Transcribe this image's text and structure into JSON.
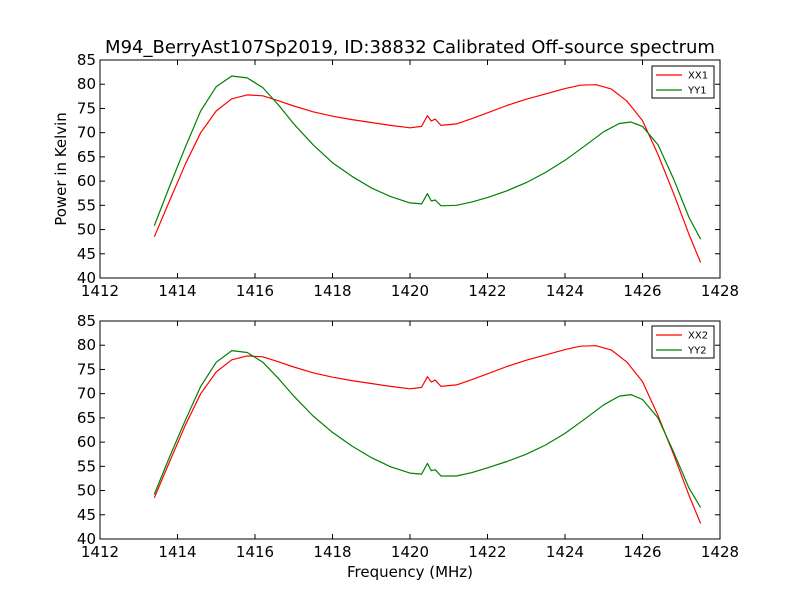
{
  "figure": {
    "title": "M94_BerryAst107Sp2019, ID:38832 Calibrated Off-source spectrum"
  },
  "chart_data": [
    {
      "type": "line",
      "xlabel": "",
      "ylabel": "Power in Kelvin",
      "xlim": [
        1412,
        1428
      ],
      "ylim": [
        40,
        85
      ],
      "xticks": [
        "1412",
        "1414",
        "1416",
        "1418",
        "1420",
        "1422",
        "1424",
        "1426",
        "1428"
      ],
      "yticks": [
        "40",
        "45",
        "50",
        "55",
        "60",
        "65",
        "70",
        "75",
        "80",
        "85"
      ],
      "legend": "top-right",
      "series": [
        {
          "name": "XX1",
          "color": "#ff0000",
          "points": [
            [
              1413.4,
              48.5
            ],
            [
              1413.8,
              56
            ],
            [
              1414.2,
              63.5
            ],
            [
              1414.6,
              70
            ],
            [
              1415.0,
              74.5
            ],
            [
              1415.4,
              77
            ],
            [
              1415.8,
              77.8
            ],
            [
              1416.2,
              77.6
            ],
            [
              1416.6,
              76.6
            ],
            [
              1417.0,
              75.5
            ],
            [
              1417.5,
              74.3
            ],
            [
              1418.0,
              73.4
            ],
            [
              1418.5,
              72.7
            ],
            [
              1419.0,
              72.1
            ],
            [
              1419.5,
              71.5
            ],
            [
              1420.0,
              71.0
            ],
            [
              1420.3,
              71.3
            ],
            [
              1420.45,
              73.5
            ],
            [
              1420.55,
              72.4
            ],
            [
              1420.65,
              72.8
            ],
            [
              1420.8,
              71.5
            ],
            [
              1421.2,
              71.8
            ],
            [
              1421.6,
              72.9
            ],
            [
              1422.0,
              74.1
            ],
            [
              1422.5,
              75.6
            ],
            [
              1423.0,
              76.9
            ],
            [
              1423.5,
              78.0
            ],
            [
              1424.0,
              79.1
            ],
            [
              1424.4,
              79.8
            ],
            [
              1424.8,
              79.9
            ],
            [
              1425.2,
              79.0
            ],
            [
              1425.6,
              76.5
            ],
            [
              1426.0,
              72.5
            ],
            [
              1426.4,
              65.5
            ],
            [
              1426.8,
              57.5
            ],
            [
              1427.2,
              49
            ],
            [
              1427.5,
              43.2
            ]
          ]
        },
        {
          "name": "YY1",
          "color": "#008000",
          "points": [
            [
              1413.4,
              50.8
            ],
            [
              1413.8,
              59
            ],
            [
              1414.2,
              67
            ],
            [
              1414.6,
              74.5
            ],
            [
              1415.0,
              79.5
            ],
            [
              1415.4,
              81.7
            ],
            [
              1415.8,
              81.3
            ],
            [
              1416.2,
              79.3
            ],
            [
              1416.6,
              75.8
            ],
            [
              1417.0,
              71.8
            ],
            [
              1417.5,
              67.5
            ],
            [
              1418.0,
              63.8
            ],
            [
              1418.5,
              61.0
            ],
            [
              1419.0,
              58.6
            ],
            [
              1419.5,
              56.8
            ],
            [
              1420.0,
              55.5
            ],
            [
              1420.3,
              55.3
            ],
            [
              1420.45,
              57.4
            ],
            [
              1420.55,
              55.9
            ],
            [
              1420.65,
              56.1
            ],
            [
              1420.8,
              54.9
            ],
            [
              1421.2,
              55.0
            ],
            [
              1421.6,
              55.7
            ],
            [
              1422.0,
              56.6
            ],
            [
              1422.5,
              58.0
            ],
            [
              1423.0,
              59.7
            ],
            [
              1423.5,
              61.8
            ],
            [
              1424.0,
              64.3
            ],
            [
              1424.5,
              67.2
            ],
            [
              1425.0,
              70.2
            ],
            [
              1425.4,
              71.9
            ],
            [
              1425.7,
              72.2
            ],
            [
              1426.0,
              71.3
            ],
            [
              1426.4,
              67.5
            ],
            [
              1426.8,
              60.5
            ],
            [
              1427.2,
              52.5
            ],
            [
              1427.5,
              48.0
            ]
          ]
        }
      ]
    },
    {
      "type": "line",
      "xlabel": "Frequency (MHz)",
      "ylabel": "",
      "xlim": [
        1412,
        1428
      ],
      "ylim": [
        40,
        85
      ],
      "xticks": [
        "1412",
        "1414",
        "1416",
        "1418",
        "1420",
        "1422",
        "1424",
        "1426",
        "1428"
      ],
      "yticks": [
        "40",
        "45",
        "50",
        "55",
        "60",
        "65",
        "70",
        "75",
        "80",
        "85"
      ],
      "legend": "top-right",
      "series": [
        {
          "name": "XX2",
          "color": "#ff0000",
          "points": [
            [
              1413.4,
              48.5
            ],
            [
              1413.8,
              56
            ],
            [
              1414.2,
              63.5
            ],
            [
              1414.6,
              70
            ],
            [
              1415.0,
              74.5
            ],
            [
              1415.4,
              77
            ],
            [
              1415.8,
              77.8
            ],
            [
              1416.2,
              77.6
            ],
            [
              1416.6,
              76.6
            ],
            [
              1417.0,
              75.5
            ],
            [
              1417.5,
              74.3
            ],
            [
              1418.0,
              73.4
            ],
            [
              1418.5,
              72.7
            ],
            [
              1419.0,
              72.1
            ],
            [
              1419.5,
              71.5
            ],
            [
              1420.0,
              71.0
            ],
            [
              1420.3,
              71.3
            ],
            [
              1420.45,
              73.5
            ],
            [
              1420.55,
              72.4
            ],
            [
              1420.65,
              72.8
            ],
            [
              1420.8,
              71.5
            ],
            [
              1421.2,
              71.8
            ],
            [
              1421.6,
              72.9
            ],
            [
              1422.0,
              74.1
            ],
            [
              1422.5,
              75.6
            ],
            [
              1423.0,
              76.9
            ],
            [
              1423.5,
              78.0
            ],
            [
              1424.0,
              79.1
            ],
            [
              1424.4,
              79.8
            ],
            [
              1424.8,
              79.9
            ],
            [
              1425.2,
              79.0
            ],
            [
              1425.6,
              76.5
            ],
            [
              1426.0,
              72.5
            ],
            [
              1426.4,
              65.5
            ],
            [
              1426.8,
              57.5
            ],
            [
              1427.2,
              49
            ],
            [
              1427.5,
              43.2
            ]
          ]
        },
        {
          "name": "YY2",
          "color": "#008000",
          "points": [
            [
              1413.4,
              49.2
            ],
            [
              1413.8,
              57
            ],
            [
              1414.2,
              64.5
            ],
            [
              1414.6,
              71.5
            ],
            [
              1415.0,
              76.5
            ],
            [
              1415.4,
              78.9
            ],
            [
              1415.8,
              78.5
            ],
            [
              1416.2,
              76.5
            ],
            [
              1416.6,
              73.2
            ],
            [
              1417.0,
              69.5
            ],
            [
              1417.5,
              65.4
            ],
            [
              1418.0,
              62.0
            ],
            [
              1418.5,
              59.2
            ],
            [
              1419.0,
              56.8
            ],
            [
              1419.5,
              54.9
            ],
            [
              1420.0,
              53.6
            ],
            [
              1420.3,
              53.4
            ],
            [
              1420.45,
              55.6
            ],
            [
              1420.55,
              54.1
            ],
            [
              1420.65,
              54.3
            ],
            [
              1420.8,
              53.0
            ],
            [
              1421.2,
              53.0
            ],
            [
              1421.6,
              53.7
            ],
            [
              1422.0,
              54.7
            ],
            [
              1422.5,
              56.0
            ],
            [
              1423.0,
              57.5
            ],
            [
              1423.5,
              59.4
            ],
            [
              1424.0,
              61.8
            ],
            [
              1424.5,
              64.7
            ],
            [
              1425.0,
              67.7
            ],
            [
              1425.4,
              69.5
            ],
            [
              1425.7,
              69.8
            ],
            [
              1426.0,
              68.8
            ],
            [
              1426.4,
              65.0
            ],
            [
              1426.8,
              58.0
            ],
            [
              1427.2,
              50.5
            ],
            [
              1427.5,
              46.5
            ]
          ]
        }
      ]
    }
  ]
}
